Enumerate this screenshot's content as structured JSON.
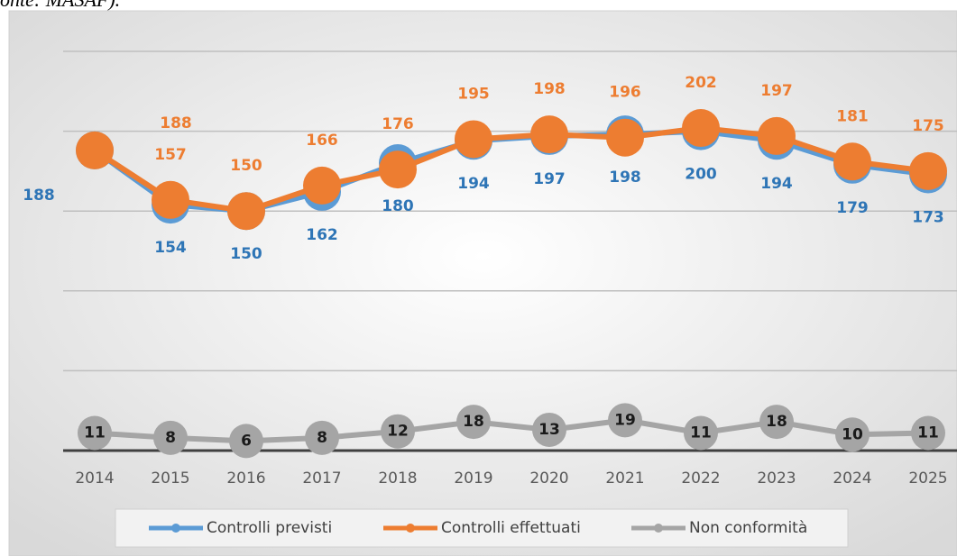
{
  "caption": "onte: MASAF).",
  "chart_data": {
    "type": "line",
    "categories": [
      "2014",
      "2015",
      "2016",
      "2017",
      "2018",
      "2019",
      "2020",
      "2021",
      "2022",
      "2023",
      "2024",
      "2025"
    ],
    "series": [
      {
        "name": "Controlli previsti",
        "color": "#5b9bd5",
        "label_color": "#2e75b6",
        "values": [
          188,
          154,
          150,
          162,
          180,
          194,
          197,
          198,
          200,
          194,
          179,
          173
        ]
      },
      {
        "name": "Controlli effettuati",
        "color": "#ed7d31",
        "label_color": "#ed7d31",
        "values": [
          188,
          157,
          150,
          166,
          176,
          195,
          198,
          196,
          202,
          197,
          181,
          175
        ]
      },
      {
        "name": "Non conformità",
        "color": "#a5a5a5",
        "label_color": "#1a1a1a",
        "values": [
          11,
          8,
          6,
          8,
          12,
          18,
          13,
          19,
          11,
          18,
          10,
          11
        ]
      }
    ],
    "ylim": [
      0,
      250
    ],
    "yticks": [
      0,
      50,
      100,
      150,
      200,
      250
    ],
    "grid": true,
    "legend": "bottom"
  }
}
